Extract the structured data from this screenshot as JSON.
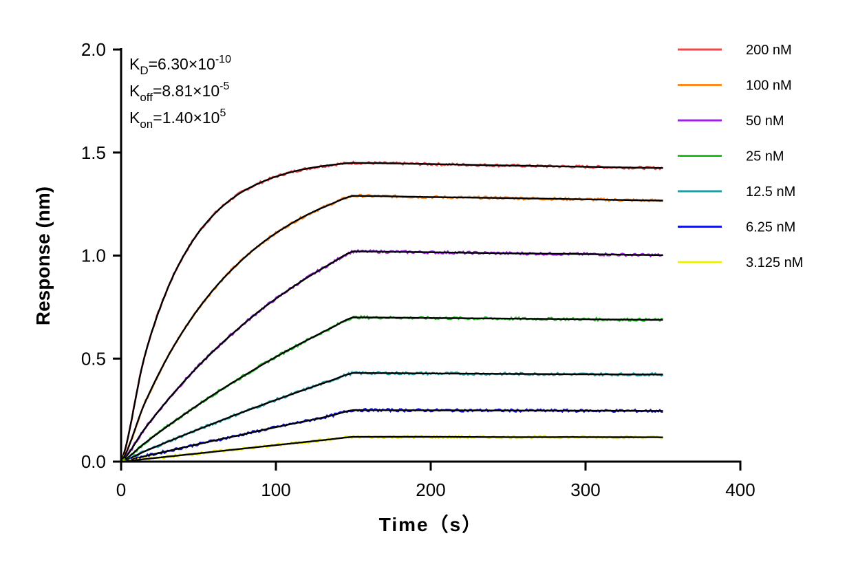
{
  "chart_data": {
    "type": "line",
    "title": "",
    "xlabel": "Time（s）",
    "ylabel": "Response (nm)",
    "xlim": [
      0,
      400
    ],
    "ylim": [
      0,
      2.0
    ],
    "xticks": [
      0,
      100,
      200,
      300,
      400
    ],
    "xtick_labels": [
      "0",
      "100",
      "200",
      "300",
      "400"
    ],
    "yticks": [
      0,
      0.5,
      1.0,
      1.5,
      2.0
    ],
    "ytick_labels": [
      "0.0",
      "0.5",
      "1.0",
      "1.5",
      "2.0"
    ],
    "grid": false,
    "legend_position": "top-right",
    "fit_line_color": "#000000",
    "x": [
      0,
      15,
      30,
      45,
      60,
      75,
      90,
      105,
      120,
      135,
      150,
      200,
      250,
      300,
      350
    ],
    "series": [
      {
        "name": "200 nM",
        "color": "#f04848",
        "values": [
          0,
          0.506,
          0.839,
          1.057,
          1.2,
          1.294,
          1.354,
          1.395,
          1.422,
          1.439,
          1.45,
          1.444,
          1.437,
          1.431,
          1.425
        ]
      },
      {
        "name": "100 nM",
        "color": "#ff8a1e",
        "values": [
          0,
          0.279,
          0.507,
          0.69,
          0.838,
          0.957,
          1.055,
          1.133,
          1.197,
          1.248,
          1.29,
          1.284,
          1.279,
          1.273,
          1.267
        ]
      },
      {
        "name": "50 nM",
        "color": "#a21ee6",
        "values": [
          0,
          0.157,
          0.298,
          0.425,
          0.539,
          0.641,
          0.735,
          0.817,
          0.892,
          0.959,
          1.02,
          1.016,
          1.011,
          1.007,
          1.002
        ]
      },
      {
        "name": "25 nM",
        "color": "#1ec21e",
        "values": [
          0,
          0.088,
          0.172,
          0.251,
          0.327,
          0.397,
          0.465,
          0.529,
          0.589,
          0.646,
          0.7,
          0.697,
          0.694,
          0.691,
          0.688
        ]
      },
      {
        "name": "12.5 nM",
        "color": "#1ea0a8",
        "values": [
          0,
          0.049,
          0.096,
          0.142,
          0.186,
          0.23,
          0.272,
          0.313,
          0.353,
          0.392,
          0.43,
          0.428,
          0.426,
          0.424,
          0.423
        ]
      },
      {
        "name": "6.25 nM",
        "color": "#1414e0",
        "values": [
          0,
          0.026,
          0.051,
          0.077,
          0.102,
          0.126,
          0.151,
          0.175,
          0.198,
          0.222,
          0.25,
          0.249,
          0.248,
          0.247,
          0.246
        ]
      },
      {
        "name": "3.125 nM",
        "color": "#f2f000",
        "values": [
          0,
          0.012,
          0.024,
          0.036,
          0.048,
          0.06,
          0.072,
          0.084,
          0.096,
          0.108,
          0.12,
          0.12,
          0.119,
          0.119,
          0.118
        ]
      }
    ],
    "annotations": [
      {
        "base": "K",
        "sub": "D",
        "value": "=6.30×10",
        "exp": "-10"
      },
      {
        "base": "K",
        "sub": "off",
        "value": "=8.81×10",
        "exp": "-5"
      },
      {
        "base": "K",
        "sub": "on",
        "value": "=1.40×10",
        "exp": "5"
      }
    ]
  }
}
